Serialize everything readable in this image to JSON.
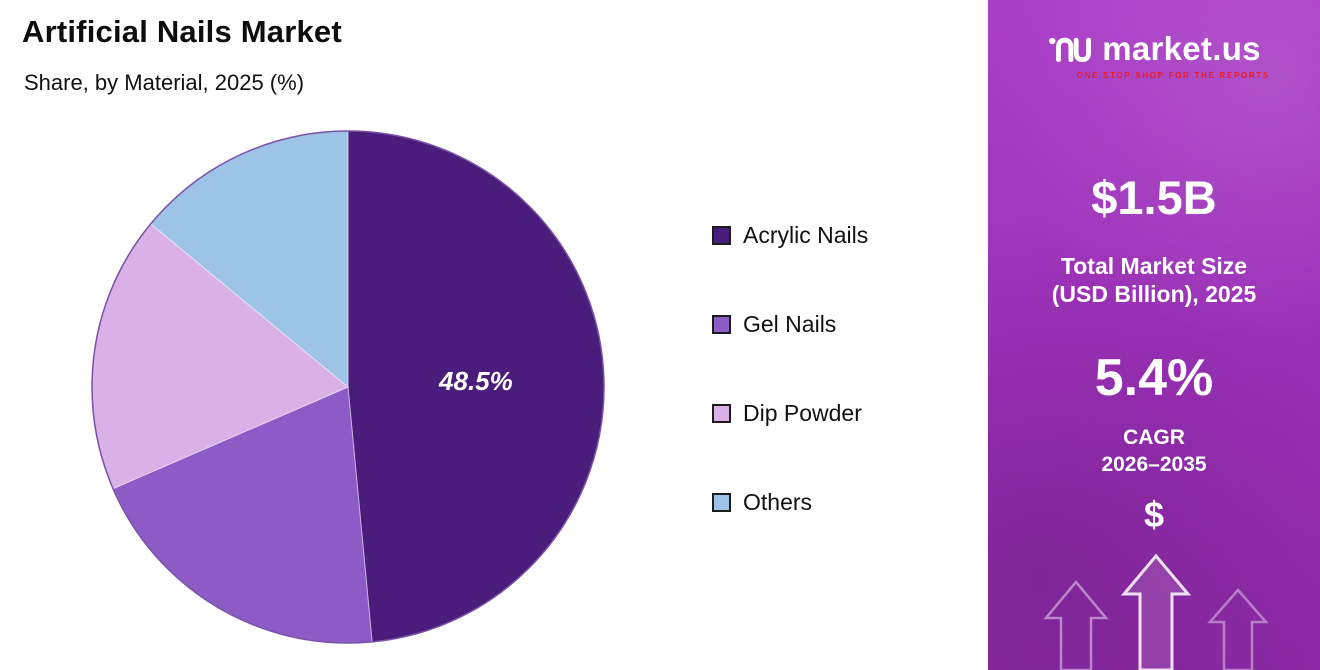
{
  "chart": {
    "title": "Artificial Nails Market",
    "subtitle": "Share, by Material, 2025 (%)"
  },
  "chart_data": {
    "type": "pie",
    "title": "Artificial Nails Market",
    "subtitle": "Share, by Material, 2025 (%)",
    "labels": [
      "Acrylic Nails",
      "Gel Nails",
      "Dip Powder",
      "Others"
    ],
    "values": [
      48.5,
      20.0,
      17.5,
      14.0
    ],
    "colors": [
      "#4a1d7c",
      "#8d5bc6",
      "#d9b1e6",
      "#9dc3e6"
    ],
    "data_labels": [
      "48.5%",
      "",
      "",
      ""
    ],
    "start_angle_deg": 0,
    "direction": "clockwise",
    "legend_position": "right"
  },
  "panel": {
    "brand": {
      "name": "market.us",
      "tagline": "ONE STOP SHOP FOR THE REPORTS"
    },
    "market_size": {
      "value": "$1.5B",
      "label_line1": "Total Market Size",
      "label_line2": "(USD Billion), 2025"
    },
    "cagr": {
      "value": "5.4%",
      "label_line1": "CAGR",
      "label_line2": "2026–2035"
    },
    "dollar_symbol": "$",
    "colors": {
      "background_top": "#ab3ec8",
      "background_bottom": "#8d2aa6",
      "tagline_red": "#ed1c24"
    }
  }
}
